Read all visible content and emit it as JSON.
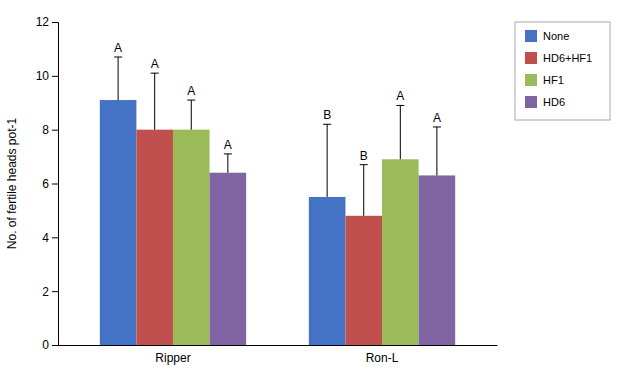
{
  "chart_data": {
    "type": "bar",
    "categories": [
      "Ripper",
      "Ron-L"
    ],
    "series": [
      {
        "name": "None",
        "color": "#4472C4",
        "values": [
          9.1,
          5.5
        ],
        "errors": [
          1.6,
          2.7
        ],
        "sig_labels": [
          "A",
          "B"
        ]
      },
      {
        "name": "HD6+HF1",
        "color": "#C0504D",
        "values": [
          8.0,
          4.8
        ],
        "errors": [
          2.1,
          1.9
        ],
        "sig_labels": [
          "A",
          "B"
        ]
      },
      {
        "name": "HF1",
        "color": "#9BBB59",
        "values": [
          8.0,
          6.9
        ],
        "errors": [
          1.1,
          2.0
        ],
        "sig_labels": [
          "A",
          "A"
        ]
      },
      {
        "name": "HD6",
        "color": "#8064A2",
        "values": [
          6.4,
          6.3
        ],
        "errors": [
          0.7,
          1.8
        ],
        "sig_labels": [
          "A",
          "A"
        ]
      }
    ],
    "ylabel": "No. of fertile heads pot-1",
    "ylim": [
      0,
      12
    ],
    "yticks": [
      0,
      2,
      4,
      6,
      8,
      10,
      12
    ],
    "grid": false,
    "legend": "right"
  }
}
